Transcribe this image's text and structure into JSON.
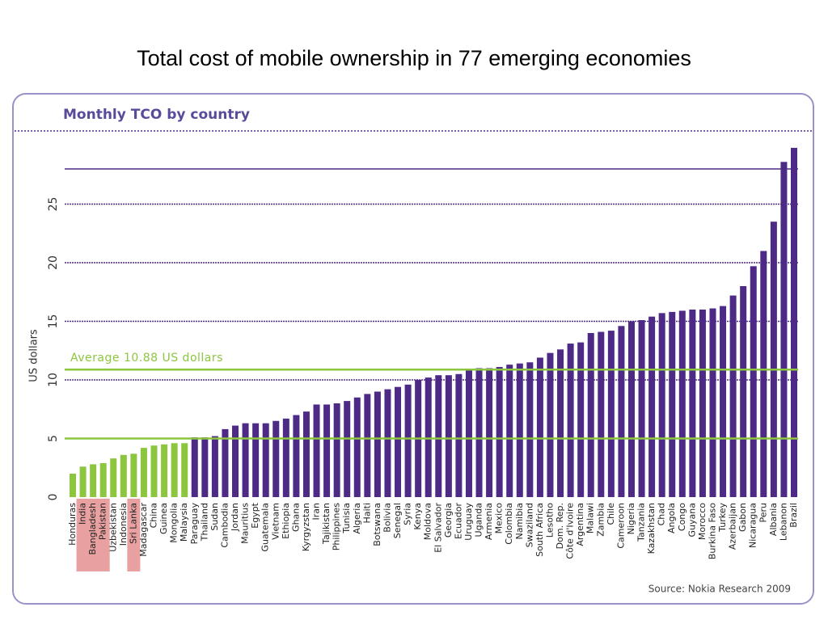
{
  "slide_title": "Total cost of mobile ownership in 77 emerging economies",
  "chart_data": {
    "type": "bar",
    "title": "Monthly TCO by country",
    "y_label": "US dollars",
    "source": "Source: Nokia Research 2009",
    "categories": [
      "Honduras",
      "India",
      "Bangladesh",
      "Pakistan",
      "Uzbekistan",
      "Indonesia",
      "Sri Lanka",
      "Madagascar",
      "China",
      "Guinea",
      "Mongolia",
      "Malaysia",
      "Paraguay",
      "Thailand",
      "Sudan",
      "Cambodia",
      "Jordan",
      "Mauritius",
      "Egypt",
      "Guatemala",
      "Vietnam",
      "Ethiopia",
      "Ghana",
      "Kyrgyzstan",
      "Iran",
      "Tajikistan",
      "Philippines",
      "Tunisia",
      "Algeria",
      "Haiti",
      "Botswana",
      "Bolivia",
      "Senegal",
      "Syria",
      "Kenya",
      "Moldova",
      "El Salvador",
      "Georgia",
      "Ecuador",
      "Uruguay",
      "Uganda",
      "Armenia",
      "Mexico",
      "Colombia",
      "Namibia",
      "Swaziland",
      "South Africa",
      "Lesotho",
      "Dom. Rep.",
      "Côte d'Ivoire",
      "Argentina",
      "Malawi",
      "Zambia",
      "Chile",
      "Cameroon",
      "Nigeria",
      "Tanzania",
      "Kazakhstan",
      "Chad",
      "Angola",
      "Congo",
      "Guyana",
      "Morocco",
      "Burkina Faso",
      "Turkey",
      "Azerbaijan",
      "Gabon",
      "Nicaragua",
      "Peru",
      "Albania",
      "Lebanon",
      "Brazil"
    ],
    "values": [
      2.0,
      2.6,
      2.8,
      2.9,
      3.3,
      3.6,
      3.7,
      4.2,
      4.4,
      4.5,
      4.6,
      4.6,
      5.1,
      5.1,
      5.2,
      5.8,
      6.1,
      6.3,
      6.3,
      6.3,
      6.5,
      6.7,
      7.0,
      7.3,
      7.9,
      7.9,
      8.0,
      8.2,
      8.5,
      8.8,
      9.0,
      9.2,
      9.4,
      9.6,
      10.0,
      10.2,
      10.4,
      10.4,
      10.5,
      10.9,
      11.0,
      11.0,
      11.1,
      11.3,
      11.4,
      11.5,
      11.9,
      12.3,
      12.6,
      13.1,
      13.2,
      14.0,
      14.1,
      14.2,
      14.6,
      15.0,
      15.1,
      15.4,
      15.7,
      15.8,
      15.9,
      16.0,
      16.0,
      16.1,
      16.3,
      17.2,
      18.0,
      19.7,
      21.0,
      23.5,
      28.6,
      29.8
    ],
    "colors": [
      "#8cc63f",
      "#8cc63f",
      "#8cc63f",
      "#8cc63f",
      "#8cc63f",
      "#8cc63f",
      "#8cc63f",
      "#8cc63f",
      "#8cc63f",
      "#8cc63f",
      "#8cc63f",
      "#8cc63f",
      "#4e2a87",
      "#4e2a87",
      "#4e2a87",
      "#4e2a87",
      "#4e2a87",
      "#4e2a87",
      "#4e2a87",
      "#4e2a87",
      "#4e2a87",
      "#4e2a87",
      "#4e2a87",
      "#4e2a87",
      "#4e2a87",
      "#4e2a87",
      "#4e2a87",
      "#4e2a87",
      "#4e2a87",
      "#4e2a87",
      "#4e2a87",
      "#4e2a87",
      "#4e2a87",
      "#4e2a87",
      "#4e2a87",
      "#4e2a87",
      "#4e2a87",
      "#4e2a87",
      "#4e2a87",
      "#4e2a87",
      "#4e2a87",
      "#4e2a87",
      "#4e2a87",
      "#4e2a87",
      "#4e2a87",
      "#4e2a87",
      "#4e2a87",
      "#4e2a87",
      "#4e2a87",
      "#4e2a87",
      "#4e2a87",
      "#4e2a87",
      "#4e2a87",
      "#4e2a87",
      "#4e2a87",
      "#4e2a87",
      "#4e2a87",
      "#4e2a87",
      "#4e2a87",
      "#4e2a87",
      "#4e2a87",
      "#4e2a87",
      "#4e2a87",
      "#4e2a87",
      "#4e2a87",
      "#4e2a87",
      "#4e2a87",
      "#4e2a87",
      "#4e2a87",
      "#4e2a87",
      "#4e2a87",
      "#4e2a87"
    ],
    "highlight": [
      1,
      2,
      3,
      6
    ],
    "highlight_color": "#e8a0a0",
    "ylim": [
      0,
      28
    ],
    "yticks": [
      0,
      5,
      10,
      15,
      20,
      25
    ],
    "grid": true,
    "reference_lines": [
      {
        "value": 10.88,
        "label": "Average 10.88 US dollars",
        "color": "#8cc63f"
      },
      {
        "value": 5,
        "color": "#8cc63f"
      }
    ]
  }
}
